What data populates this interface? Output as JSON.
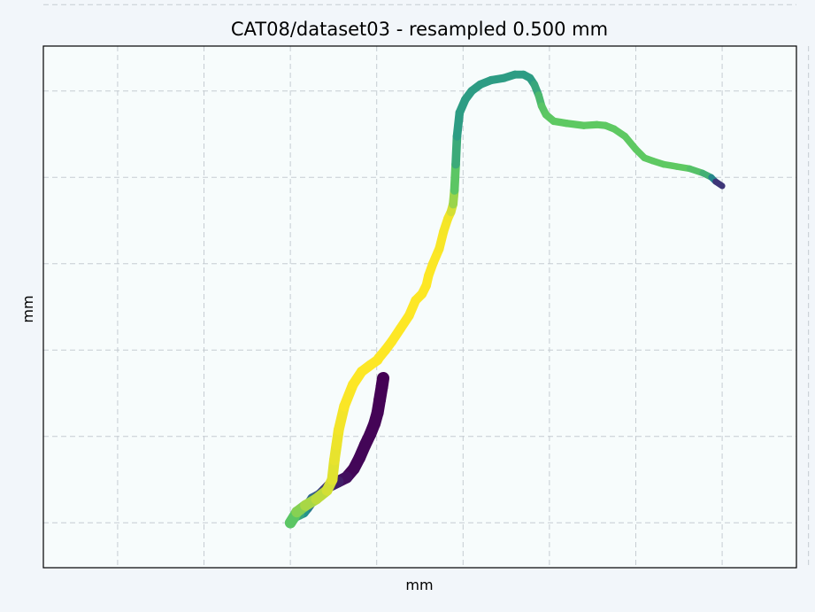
{
  "chart_data": {
    "type": "line",
    "title": "CAT08/dataset03 - resampled 0.500 mm",
    "xlabel": "mm",
    "ylabel": "mm",
    "grid": true,
    "ticks_labeled": false,
    "x_gridlines": [
      -4,
      -2,
      0,
      2,
      4,
      6,
      8,
      10,
      12
    ],
    "y_gridlines": [
      -2,
      0,
      2,
      4,
      6,
      8,
      10
    ],
    "xlim": [
      -5.72,
      11.72
    ],
    "ylim": [
      -3.04,
      9.04
    ],
    "colormap": "viridis",
    "line_width_note": "segment width varies along the vessel centerline",
    "series": [
      {
        "x": [
          2.15,
          2.12,
          2.07,
          2.02,
          1.95,
          1.85,
          1.73,
          1.6,
          1.47,
          1.3,
          1.1,
          0.9,
          0.8,
          0.7,
          0.62,
          0.52,
          0.38,
          0.3,
          0.2,
          0.1,
          0.0,
          0.15,
          0.35,
          0.6,
          0.85,
          0.97,
          1.02,
          1.07,
          1.12,
          1.25,
          1.45,
          1.65,
          1.85,
          2.02,
          2.05,
          2.1,
          2.2,
          2.35,
          2.55,
          2.75,
          2.9,
          3.05,
          3.15,
          3.2,
          3.3,
          3.45,
          3.55,
          3.65,
          3.72,
          3.77,
          3.8,
          3.83,
          3.86,
          3.92,
          4.05,
          4.2,
          4.4,
          4.65,
          4.95,
          5.2,
          5.4,
          5.55,
          5.65,
          5.75,
          5.82,
          5.92,
          6.1,
          6.4,
          6.8,
          7.1,
          7.3,
          7.5,
          7.75,
          8.0,
          8.2,
          8.4,
          8.65,
          8.95,
          9.25,
          9.55,
          9.75,
          9.85,
          10.0
        ],
        "y": [
          1.35,
          1.15,
          0.85,
          0.55,
          0.3,
          0.05,
          -0.2,
          -0.5,
          -0.75,
          -0.95,
          -1.05,
          -1.15,
          -1.25,
          -1.35,
          -1.4,
          -1.45,
          -1.65,
          -1.75,
          -1.8,
          -1.85,
          -2.0,
          -1.75,
          -1.6,
          -1.45,
          -1.25,
          -1.0,
          -0.55,
          -0.2,
          0.15,
          0.7,
          1.2,
          1.5,
          1.65,
          1.77,
          1.82,
          1.88,
          2.0,
          2.2,
          2.5,
          2.8,
          3.15,
          3.3,
          3.5,
          3.72,
          4.0,
          4.35,
          4.75,
          5.05,
          5.2,
          5.38,
          5.7,
          6.3,
          6.95,
          7.5,
          7.8,
          8.0,
          8.15,
          8.25,
          8.3,
          8.38,
          8.38,
          8.3,
          8.15,
          7.9,
          7.65,
          7.45,
          7.3,
          7.25,
          7.2,
          7.22,
          7.2,
          7.12,
          6.95,
          6.65,
          6.45,
          6.38,
          6.3,
          6.25,
          6.2,
          6.1,
          6.0,
          5.9,
          5.8
        ]
      }
    ]
  }
}
